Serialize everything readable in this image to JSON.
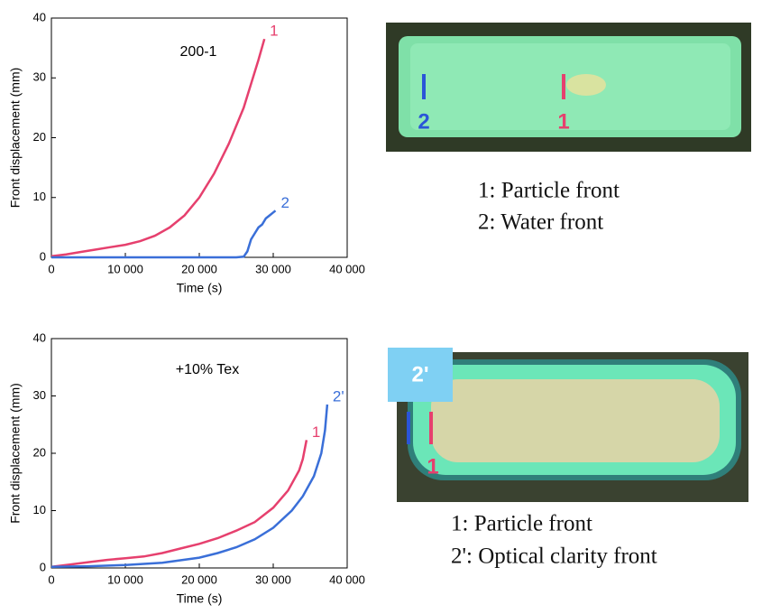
{
  "chart_data": [
    {
      "type": "line",
      "annotation": "200-1",
      "x_label": "Time (s)",
      "y_label": "Front displacement (mm)",
      "xlim": [
        0,
        40000
      ],
      "ylim": [
        0,
        40
      ],
      "xticks": [
        0,
        {
          "value": 10000,
          "label": "10 000"
        },
        {
          "value": 20000,
          "label": "20 000"
        },
        {
          "value": 30000,
          "label": "30 000"
        },
        {
          "value": 40000,
          "label": "40 000"
        }
      ],
      "yticks": [
        0,
        10,
        20,
        30,
        40
      ],
      "series": [
        {
          "name": "1",
          "color": "#e6406e",
          "x": [
            0,
            2000,
            4000,
            6000,
            8000,
            10000,
            12000,
            14000,
            16000,
            18000,
            20000,
            22000,
            24000,
            26000,
            27000,
            28000,
            28800
          ],
          "values": [
            0.2,
            0.5,
            0.9,
            1.3,
            1.7,
            2.1,
            2.7,
            3.6,
            5,
            7,
            10,
            14,
            19,
            25,
            29,
            33,
            36.5
          ]
        },
        {
          "name": "2",
          "color": "#3a6fd8",
          "x": [
            0,
            25000,
            26000,
            26500,
            27000,
            27500,
            28000,
            28500,
            29000,
            29500,
            30000,
            30300
          ],
          "values": [
            0,
            0,
            0.1,
            1,
            3,
            4,
            5,
            5.5,
            6.5,
            7,
            7.5,
            7.8
          ]
        }
      ]
    },
    {
      "type": "line",
      "annotation": "+10% Tex",
      "x_label": "Time (s)",
      "y_label": "Front displacement (mm)",
      "xlim": [
        0,
        40000
      ],
      "ylim": [
        0,
        40
      ],
      "xticks": [
        0,
        {
          "value": 10000,
          "label": "10 000"
        },
        {
          "value": 20000,
          "label": "20 000"
        },
        {
          "value": 30000,
          "label": "30 000"
        },
        {
          "value": 40000,
          "label": "40 000"
        }
      ],
      "yticks": [
        0,
        10,
        20,
        30,
        40
      ],
      "series": [
        {
          "name": "1",
          "color": "#e6406e",
          "x": [
            0,
            2500,
            5000,
            7500,
            10000,
            12500,
            15000,
            17500,
            20000,
            22500,
            25000,
            27500,
            30000,
            32000,
            33500,
            34000,
            34500
          ],
          "values": [
            0.2,
            0.6,
            1,
            1.4,
            1.7,
            2,
            2.6,
            3.4,
            4.2,
            5.2,
            6.5,
            8,
            10.5,
            13.5,
            17,
            19,
            22.3
          ]
        },
        {
          "name": "2'",
          "color": "#3a6fd8",
          "x": [
            0,
            5000,
            10000,
            15000,
            20000,
            22500,
            25000,
            27500,
            30000,
            32500,
            34000,
            35500,
            36500,
            37000,
            37300
          ],
          "values": [
            0.2,
            0.3,
            0.5,
            0.9,
            1.8,
            2.6,
            3.6,
            5,
            7,
            10,
            12.5,
            16,
            20,
            24,
            28.5
          ]
        }
      ]
    }
  ],
  "photos": [
    {
      "markers": [
        "2",
        "1"
      ],
      "legend": [
        "1: Particle front",
        "2: Water front"
      ]
    },
    {
      "markers": [
        "2'",
        "1"
      ],
      "legend": [
        "1: Particle front",
        "2': Optical clarity front"
      ]
    }
  ]
}
